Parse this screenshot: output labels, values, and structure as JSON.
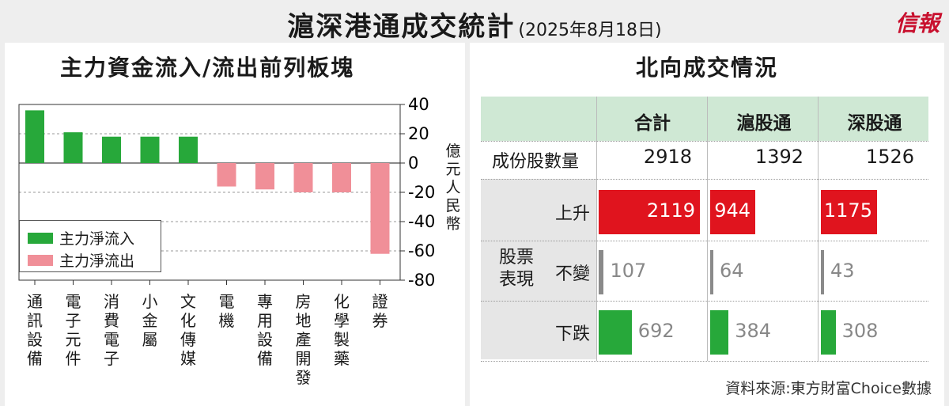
{
  "header": {
    "title": "滬深港通成交統計",
    "date": "(2025年8月18日)",
    "logo": "信報"
  },
  "left": {
    "title": "主力資金流入/流出前列板塊",
    "unit": "億元人民幣",
    "legend": {
      "inflow": "主力淨流入",
      "outflow": "主力淨流出"
    }
  },
  "right": {
    "title": "北向成交情況",
    "columns": [
      "合計",
      "滬股通",
      "深股通"
    ],
    "count_label": "成份股數量",
    "counts": [
      "2918",
      "1392",
      "1526"
    ],
    "group_label": "股票表現",
    "rows": [
      {
        "label": "上升",
        "values": [
          2119,
          944,
          1175
        ],
        "color": "#e0141e",
        "inside": true
      },
      {
        "label": "不變",
        "values": [
          107,
          64,
          43
        ],
        "color": "#8a8a8a",
        "inside": false
      },
      {
        "label": "下跌",
        "values": [
          692,
          384,
          308
        ],
        "color": "#27a83a",
        "inside": false
      }
    ],
    "value_max": 2119
  },
  "source": "資料來源:東方財富Choice數據",
  "colors": {
    "inflow": "#27a83a",
    "outflow": "#f08f98",
    "header_bg": "#cfe8d4"
  },
  "chart_data": {
    "type": "bar",
    "categories": [
      "通訊設備",
      "電子元件",
      "消費電子",
      "小金屬",
      "文化傳媒",
      "電機",
      "專用設備",
      "房地產開發",
      "化學製藥",
      "證券"
    ],
    "values": [
      36,
      21,
      18,
      18,
      18,
      -16,
      -18,
      -20,
      -20,
      -62
    ],
    "title": "主力資金流入/流出前列板塊",
    "ylabel": "億元人民幣",
    "ylim": [
      -80,
      40
    ],
    "yticks": [
      40,
      20,
      0,
      -20,
      -40,
      -60,
      -80
    ],
    "grid": true,
    "legend_position": "bottom-left"
  }
}
